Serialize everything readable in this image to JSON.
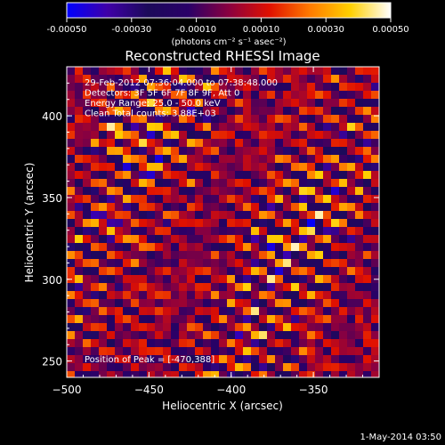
{
  "chart_data": {
    "type": "heatmap",
    "title": "Reconstructed RHESSI Image",
    "colorbar": {
      "ticks": [
        "-0.00050",
        "-0.00030",
        "-0.00010",
        "0.00010",
        "0.00030",
        "0.00050"
      ],
      "min": -0.0005,
      "max": 0.0005,
      "unit_label": "(photons cm⁻² s⁻¹ asec⁻²)",
      "colormap": [
        "#0000ff",
        "#3f00a8",
        "#1c0a5a",
        "#2a0068",
        "#8a0040",
        "#e01000",
        "#ff7a00",
        "#ffd000",
        "#ffffff"
      ]
    },
    "info_lines": [
      "29-Feb-2012 07:36:04.000 to 07:38:48.000",
      "Detectors: 3F 5F 6F 7F 8F 9F, Att 0",
      "Energy Range: 25.0 - 50.0 keV",
      "Clean     Total counts: 3.88E+03"
    ],
    "peak_text": "Position of Peak = [-470,388]",
    "xlabel": "Heliocentric X (arcsec)",
    "ylabel": "Heliocentric Y (arcsec)",
    "xlim": [
      -500,
      -310
    ],
    "ylim": [
      240,
      430
    ],
    "x_ticks": [
      -500,
      -450,
      -400,
      -350
    ],
    "x_tick_labels": [
      "−500",
      "−450",
      "−400",
      "−350"
    ],
    "y_ticks": [
      250,
      300,
      350,
      400
    ],
    "y_tick_labels": [
      "250",
      "300",
      "350",
      "400"
    ],
    "pattern": "diagonal fringe pattern, stripes running from upper-left to lower-right",
    "peak": {
      "x": -470,
      "y": 388
    }
  },
  "footer": {
    "date": "1-May-2014 03:50"
  }
}
